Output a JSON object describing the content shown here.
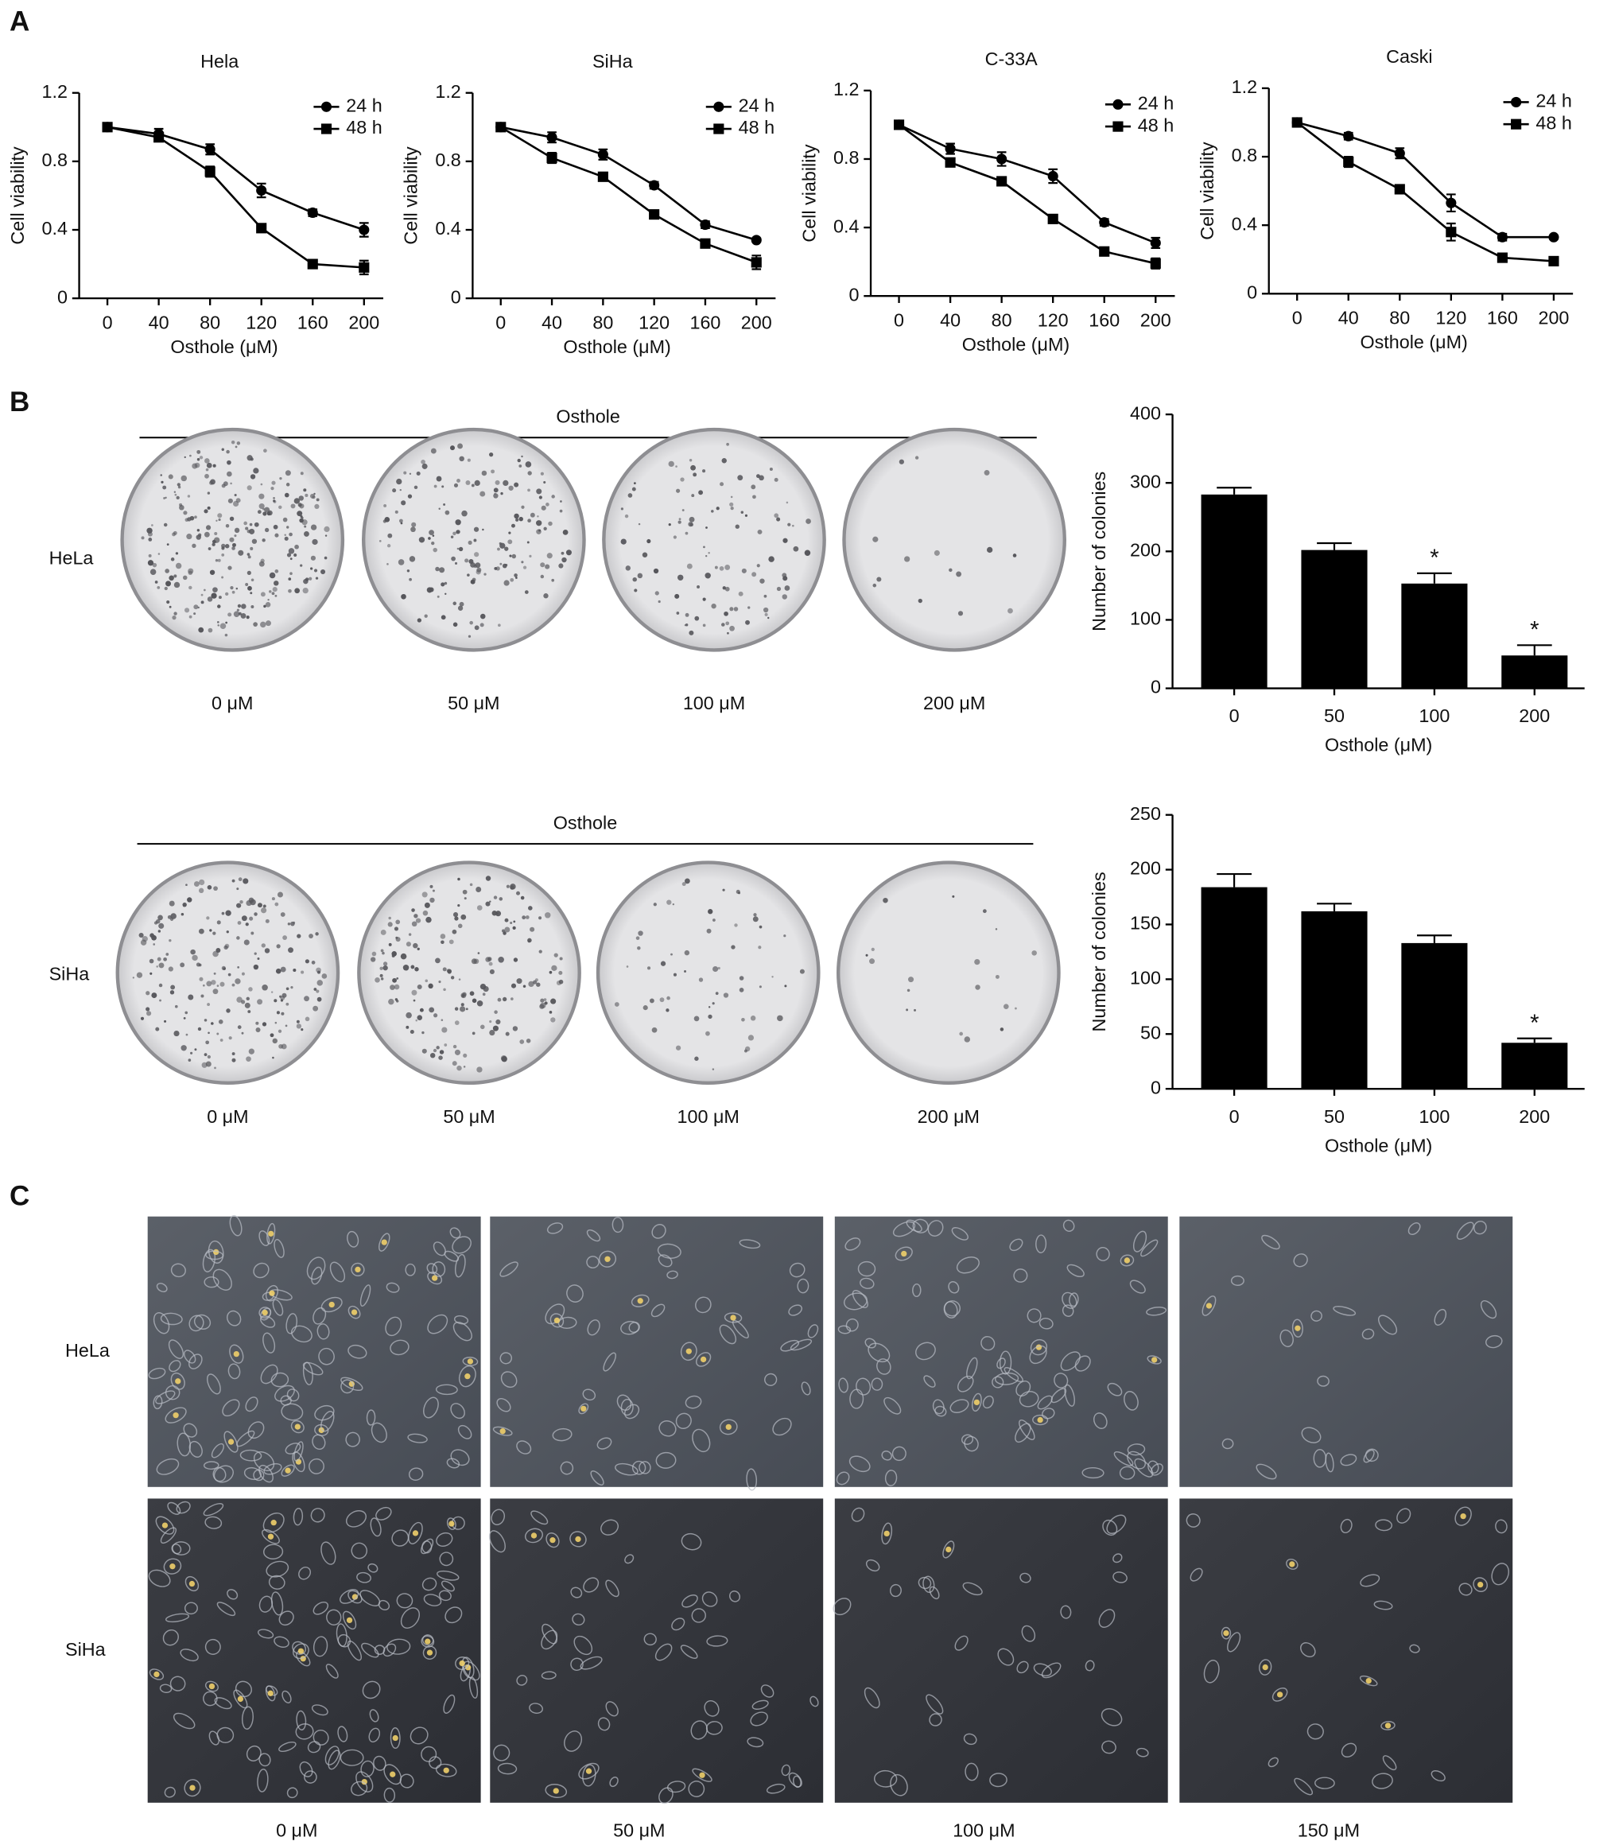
{
  "panel_labels": [
    "A",
    "B",
    "C"
  ],
  "chart_data": [
    {
      "type": "line",
      "title": "Hela",
      "xlabel": "Osthole (μM)",
      "ylabel": "Cell viability",
      "x": [
        0,
        40,
        80,
        120,
        160,
        200
      ],
      "xlim": [
        -22,
        215
      ],
      "xticks": [
        0,
        40,
        80,
        120,
        160,
        200
      ],
      "ylim": [
        0,
        1.2
      ],
      "yticks": [
        0,
        0.4,
        0.8,
        1.2
      ],
      "series": [
        {
          "name": "24 h",
          "marker": "circle",
          "color": "#000000",
          "values": [
            1.0,
            0.96,
            0.87,
            0.63,
            0.5,
            0.4
          ],
          "errors": [
            0.01,
            0.03,
            0.03,
            0.04,
            0.02,
            0.04
          ]
        },
        {
          "name": "48 h",
          "marker": "square",
          "color": "#000000",
          "values": [
            1.0,
            0.94,
            0.74,
            0.41,
            0.2,
            0.18
          ],
          "errors": [
            0.01,
            0.02,
            0.03,
            0.02,
            0.02,
            0.04
          ]
        }
      ]
    },
    {
      "type": "line",
      "title": "SiHa",
      "xlabel": "Osthole (μM)",
      "ylabel": "Cell viability",
      "x": [
        0,
        40,
        80,
        120,
        160,
        200
      ],
      "xlim": [
        -22,
        215
      ],
      "xticks": [
        0,
        40,
        80,
        120,
        160,
        200
      ],
      "ylim": [
        0,
        1.2
      ],
      "yticks": [
        0,
        0.4,
        0.8,
        1.2
      ],
      "series": [
        {
          "name": "24 h",
          "marker": "circle",
          "color": "#000000",
          "values": [
            1.0,
            0.94,
            0.84,
            0.66,
            0.43,
            0.34
          ],
          "errors": [
            0.01,
            0.03,
            0.03,
            0.02,
            0.02,
            0.01
          ]
        },
        {
          "name": "48 h",
          "marker": "square",
          "color": "#000000",
          "values": [
            1.0,
            0.82,
            0.71,
            0.49,
            0.32,
            0.21
          ],
          "errors": [
            0.01,
            0.03,
            0.02,
            0.01,
            0.01,
            0.04
          ]
        }
      ]
    },
    {
      "type": "line",
      "title": "C-33A",
      "xlabel": "Osthole (μM)",
      "ylabel": "Cell viability",
      "x": [
        0,
        40,
        80,
        120,
        160,
        200
      ],
      "xlim": [
        -22,
        215
      ],
      "xticks": [
        0,
        40,
        80,
        120,
        160,
        200
      ],
      "ylim": [
        0,
        1.2
      ],
      "yticks": [
        0,
        0.4,
        0.8,
        1.2
      ],
      "series": [
        {
          "name": "24 h",
          "marker": "circle",
          "color": "#000000",
          "values": [
            1.0,
            0.86,
            0.8,
            0.7,
            0.43,
            0.31
          ],
          "errors": [
            0.01,
            0.03,
            0.04,
            0.04,
            0.02,
            0.03
          ]
        },
        {
          "name": "48 h",
          "marker": "square",
          "color": "#000000",
          "values": [
            1.0,
            0.78,
            0.67,
            0.45,
            0.26,
            0.19
          ],
          "errors": [
            0.01,
            0.02,
            0.01,
            0.01,
            0.02,
            0.03
          ]
        }
      ]
    },
    {
      "type": "line",
      "title": "Caski",
      "xlabel": "Osthole (μM)",
      "ylabel": "Cell viability",
      "x": [
        0,
        40,
        80,
        120,
        160,
        200
      ],
      "xlim": [
        -22,
        215
      ],
      "xticks": [
        0,
        40,
        80,
        120,
        160,
        200
      ],
      "ylim": [
        0,
        1.2
      ],
      "yticks": [
        0,
        0.4,
        0.8,
        1.2
      ],
      "series": [
        {
          "name": "24 h",
          "marker": "circle",
          "color": "#000000",
          "values": [
            1.0,
            0.92,
            0.82,
            0.53,
            0.33,
            0.33
          ],
          "errors": [
            0.01,
            0.02,
            0.03,
            0.05,
            0.02,
            0.01
          ]
        },
        {
          "name": "48 h",
          "marker": "square",
          "color": "#000000",
          "values": [
            1.0,
            0.77,
            0.61,
            0.36,
            0.21,
            0.19
          ],
          "errors": [
            0.01,
            0.03,
            0.02,
            0.05,
            0.02,
            0.02
          ]
        }
      ]
    },
    {
      "type": "bar",
      "xlabel": "Osthole (μM)",
      "ylabel": "Number of colonies",
      "categories": [
        "0",
        "50",
        "100",
        "200"
      ],
      "values": [
        283,
        202,
        153,
        48
      ],
      "errors": [
        10,
        10,
        15,
        15
      ],
      "annotations": [
        null,
        null,
        "*",
        "*"
      ],
      "color": "#000000",
      "ylim": [
        0,
        400
      ],
      "yticks": [
        0,
        100,
        200,
        300,
        400
      ]
    },
    {
      "type": "bar",
      "xlabel": "Osthole (μM)",
      "ylabel": "Number of colonies",
      "categories": [
        "0",
        "50",
        "100",
        "200"
      ],
      "values": [
        184,
        162,
        133,
        42
      ],
      "errors": [
        12,
        7,
        7,
        4
      ],
      "annotations": [
        null,
        null,
        null,
        "*"
      ],
      "color": "#000000",
      "ylim": [
        0,
        250
      ],
      "yticks": [
        0,
        50,
        100,
        150,
        200,
        250
      ]
    }
  ],
  "colony_assay": [
    {
      "group_label": "Osthole",
      "cell_line": "HeLa",
      "doses": [
        "0 μM",
        "50 μM",
        "100 μM",
        "200 μM"
      ]
    },
    {
      "group_label": "Osthole",
      "cell_line": "SiHa",
      "doses": [
        "0 μM",
        "50 μM",
        "100 μM",
        "200 μM"
      ]
    }
  ],
  "morphology": {
    "cell_lines": [
      "HeLa",
      "SiHa"
    ],
    "doses": [
      "0 μM",
      "50 μM",
      "100 μM",
      "150 μM"
    ]
  }
}
